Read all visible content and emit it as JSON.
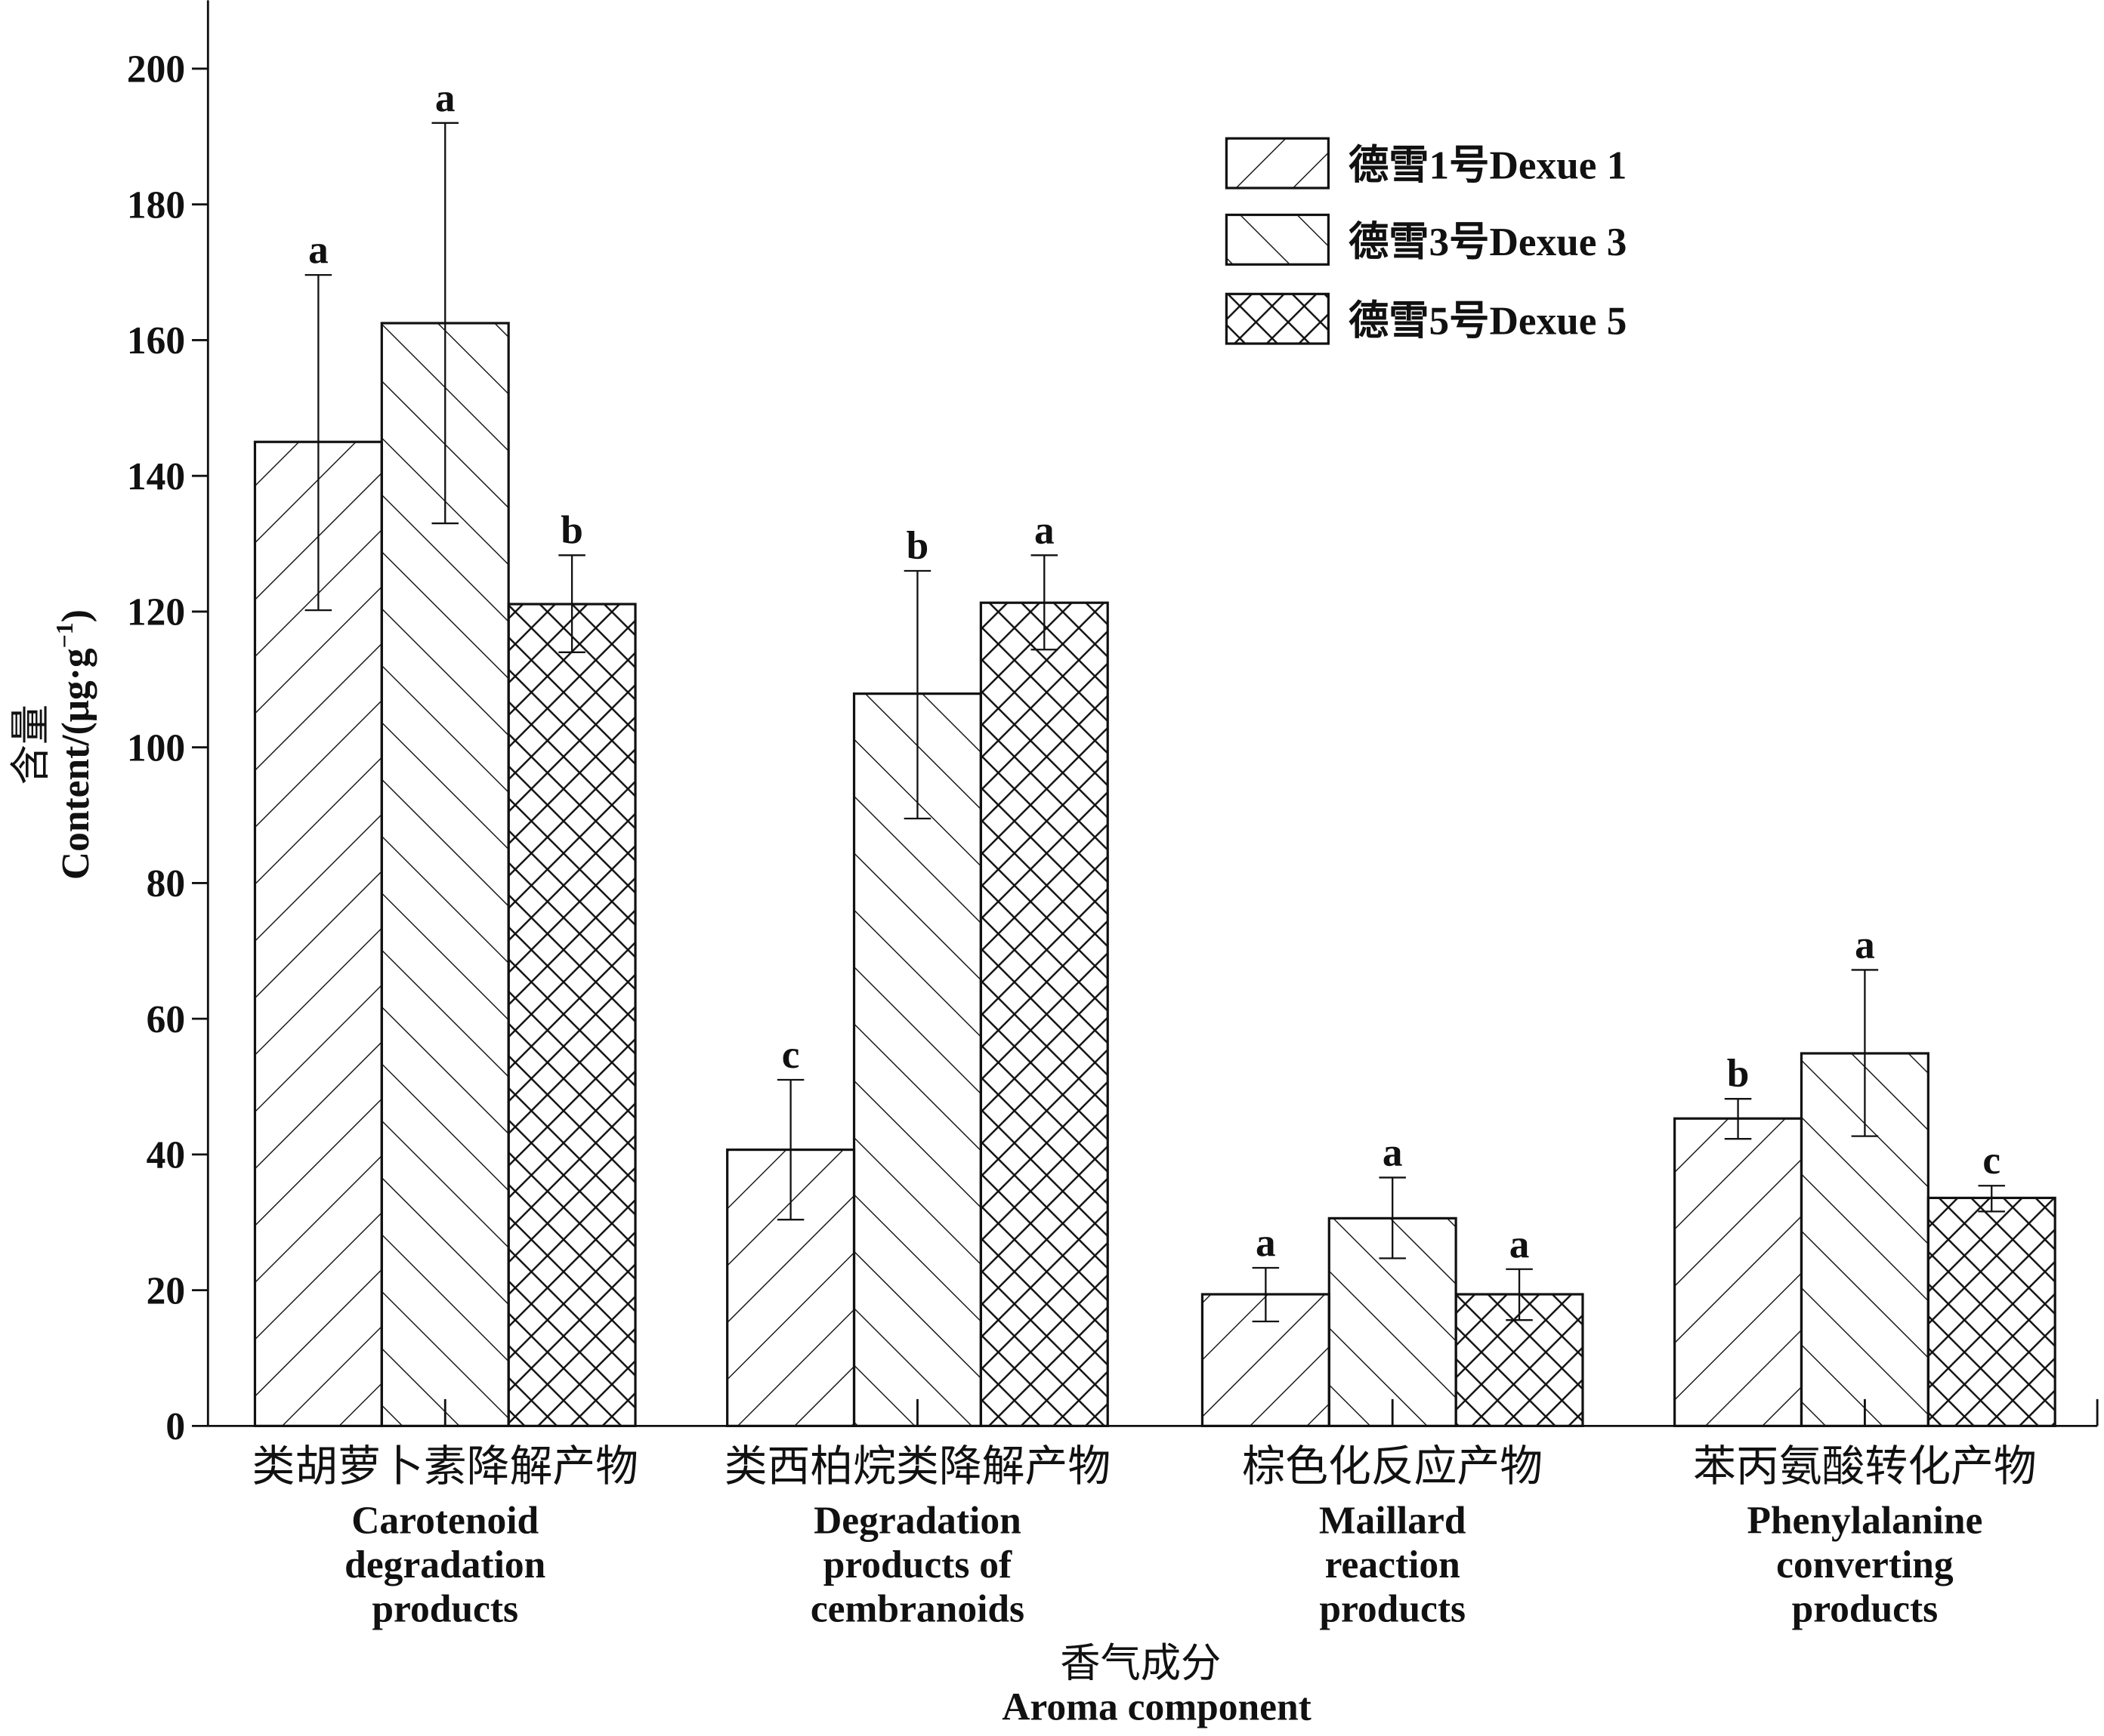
{
  "chart_data": {
    "type": "bar",
    "title": "",
    "xlabel": [
      "香气成分",
      "Aroma component"
    ],
    "ylabel": [
      "含量",
      "Content/(μg·g",
      "−1",
      ")"
    ],
    "ylim": [
      0,
      210
    ],
    "yticks": [
      "0",
      "20",
      "40",
      "60",
      "80",
      "100",
      "120",
      "140",
      "160",
      "180",
      "200"
    ],
    "grid": false,
    "legend_position": "top-right",
    "categories": [
      {
        "zh": "类胡萝卜素降解产物",
        "en": [
          "Carotenoid",
          "degradation",
          "products"
        ]
      },
      {
        "zh": "类西柏烷类降解产物",
        "en": [
          "Degradation",
          "products of",
          "cembranoids"
        ]
      },
      {
        "zh": "棕色化反应产物",
        "en": [
          "Maillard",
          "reaction",
          "products"
        ]
      },
      {
        "zh": "苯丙氨酸转化产物",
        "en": [
          "Phenylalanine",
          "converting",
          "products"
        ]
      }
    ],
    "series": [
      {
        "name": "德雪1号Dexue 1",
        "pattern": "forward-hatch",
        "values": [
          145,
          40.7,
          19.4,
          45.3
        ],
        "err_low": [
          120.2,
          30.4,
          15.4,
          42.3
        ],
        "err_high": [
          169.6,
          51,
          23.3,
          48.2
        ],
        "letters": [
          "a",
          "c",
          "a",
          "b"
        ]
      },
      {
        "name": "德雪3号Dexue 3",
        "pattern": "back-hatch",
        "values": [
          162.5,
          107.9,
          30.6,
          54.9
        ],
        "err_low": [
          133,
          89.5,
          24.7,
          42.7
        ],
        "err_high": [
          192,
          126,
          36.6,
          67.2
        ],
        "letters": [
          "a",
          "b",
          "a",
          "a"
        ]
      },
      {
        "name": "德雪5号Dexue 5",
        "pattern": "cross-hatch",
        "values": [
          121.1,
          121.3,
          19.4,
          33.6
        ],
        "err_low": [
          114,
          114.4,
          15.6,
          31.6
        ],
        "err_high": [
          128.3,
          128.3,
          23.1,
          35.4
        ],
        "letters": [
          "b",
          "a",
          "a",
          "c"
        ]
      }
    ]
  }
}
